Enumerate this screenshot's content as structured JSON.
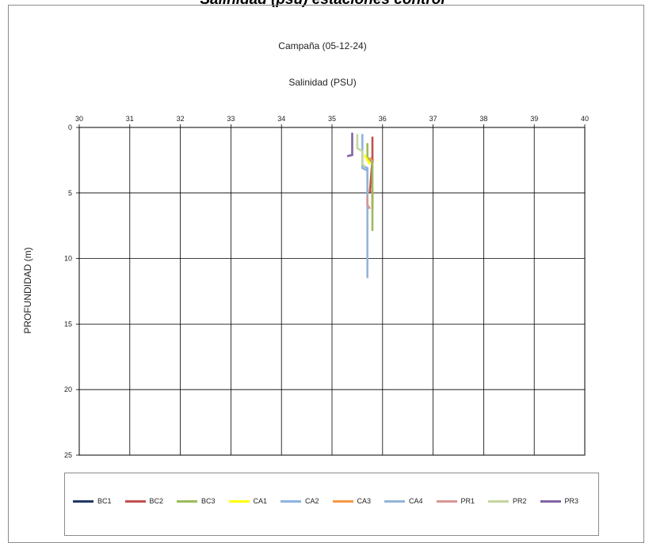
{
  "page": {
    "title": "Salinidad (psu) estaciones control",
    "campaign": "Campaña (05-12-24)"
  },
  "chart_data": {
    "type": "line",
    "title": "Salinidad (PSU)",
    "xlabel": "Salinidad (PSU)",
    "ylabel": "PROFUNDIDAD (m)",
    "xlim": [
      30,
      40
    ],
    "ylim": [
      0,
      25
    ],
    "y_inverted": true,
    "x_axis_position": "top",
    "x_ticks": [
      "30",
      "31",
      "32",
      "33",
      "34",
      "35",
      "36",
      "37",
      "38",
      "39",
      "40"
    ],
    "y_ticks": [
      "0",
      "5",
      "10",
      "15",
      "20",
      "25"
    ],
    "grid": true,
    "legend_position": "bottom",
    "series": [
      {
        "name": "BC1",
        "color": "#1f3864",
        "x": [
          35.8,
          35.8,
          35.8
        ],
        "y": [
          2.4,
          2.6,
          2.7
        ]
      },
      {
        "name": "BC2",
        "color": "#c0504d",
        "x": [
          35.8,
          35.8,
          35.75,
          35.8,
          35.8
        ],
        "y": [
          0.7,
          2.5,
          4.9,
          5.0,
          6.3
        ]
      },
      {
        "name": "BC3",
        "color": "#9bbb59",
        "x": [
          35.7,
          35.7,
          35.8,
          35.8,
          35.8
        ],
        "y": [
          1.2,
          2.3,
          2.7,
          5.0,
          7.9
        ]
      },
      {
        "name": "CA1",
        "color": "#ffff00",
        "x": [
          35.65,
          35.7,
          35.75
        ],
        "y": [
          2.1,
          2.5,
          2.8
        ]
      },
      {
        "name": "CA2",
        "color": "#8db3e2",
        "x": [
          35.6,
          35.6,
          35.7,
          35.7,
          35.7
        ],
        "y": [
          0.5,
          2.9,
          3.1,
          6.0,
          6.2
        ]
      },
      {
        "name": "CA3",
        "color": "#f79646",
        "x": [
          35.75,
          35.8
        ],
        "y": [
          2.3,
          2.6
        ]
      },
      {
        "name": "CA4",
        "color": "#95b3d7",
        "x": [
          35.6,
          35.6,
          35.7,
          35.7,
          35.7
        ],
        "y": [
          1.5,
          3.1,
          3.3,
          6.0,
          11.5
        ]
      },
      {
        "name": "PR1",
        "color": "#d99694",
        "x": [
          35.7,
          35.7,
          35.75
        ],
        "y": [
          5.2,
          5.9,
          6.2
        ]
      },
      {
        "name": "PR2",
        "color": "#c3d69b",
        "x": [
          35.5,
          35.5,
          35.6,
          35.6,
          35.65
        ],
        "y": [
          0.5,
          1.6,
          1.8,
          2.8,
          3.0
        ]
      },
      {
        "name": "PR3",
        "color": "#8064a2",
        "x": [
          35.4,
          35.4,
          35.3
        ],
        "y": [
          0.4,
          2.1,
          2.2
        ]
      }
    ]
  }
}
